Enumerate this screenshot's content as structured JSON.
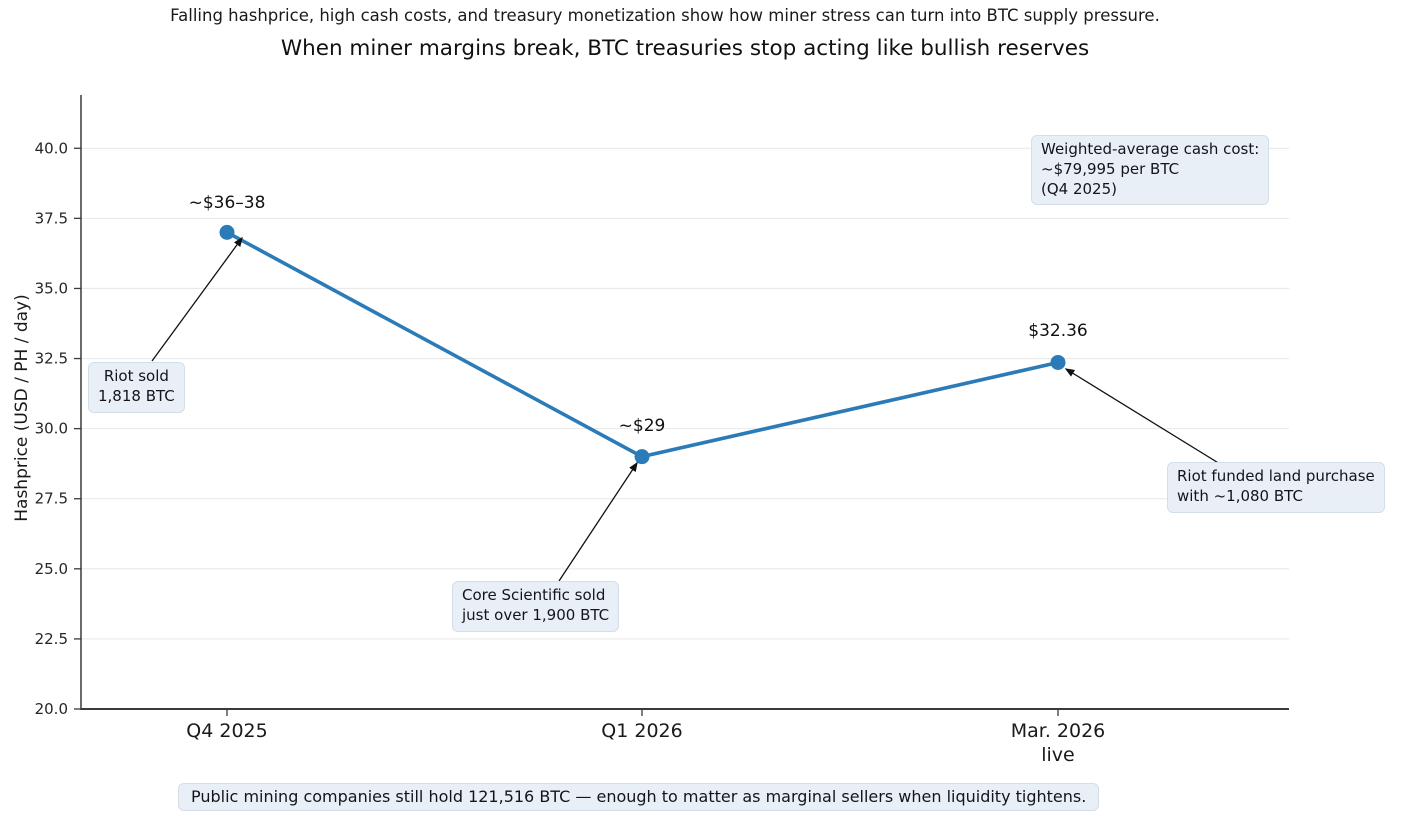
{
  "chart_data": {
    "type": "line",
    "subtitle": "Falling hashprice, high cash costs, and treasury monetization show how miner stress can turn into BTC supply pressure.",
    "title": "When miner margins break, BTC treasuries stop acting like bullish reserves",
    "categories": [
      "Q4 2025",
      "Q1 2026",
      "Mar. 2026\nlive"
    ],
    "series": [
      {
        "name": "Hashprice",
        "values": [
          37.0,
          29.0,
          32.36
        ]
      }
    ],
    "point_labels": [
      "~$36–38",
      "~$29",
      "$32.36"
    ],
    "xlabel": "",
    "ylabel": "Hashprice (USD / PH / day)",
    "yticks": [
      20.0,
      22.5,
      25.0,
      27.5,
      30.0,
      32.5,
      35.0,
      37.5,
      40.0
    ],
    "ytick_labels": [
      "20.0",
      "22.5",
      "25.0",
      "27.5",
      "30.0",
      "32.5",
      "35.0",
      "37.5",
      "40.0"
    ],
    "ylim": [
      20,
      41.9
    ],
    "grid": "horizontal",
    "legend": "none",
    "line_color": "#2b7bb8",
    "marker_color": "#2b7bb8",
    "annotations": [
      {
        "id": "riot-sold",
        "lines": [
          "Riot sold",
          "1,818 BTC"
        ],
        "target_point": "Q4 2025"
      },
      {
        "id": "core-scientific",
        "lines": [
          "Core Scientific sold",
          "just over 1,900 BTC"
        ],
        "target_point": "Q1 2026"
      },
      {
        "id": "riot-land",
        "lines": [
          "Riot funded land purchase",
          "with ~1,080 BTC"
        ],
        "target_point": "Mar. 2026"
      }
    ],
    "note": {
      "id": "weighted-cash-cost",
      "lines": [
        "Weighted-average cash cost:",
        "~$79,995 per BTC",
        "(Q4 2025)"
      ]
    },
    "caption": "Public mining companies still hold 121,516 BTC — enough to matter as marginal sellers when liquidity tightens."
  }
}
